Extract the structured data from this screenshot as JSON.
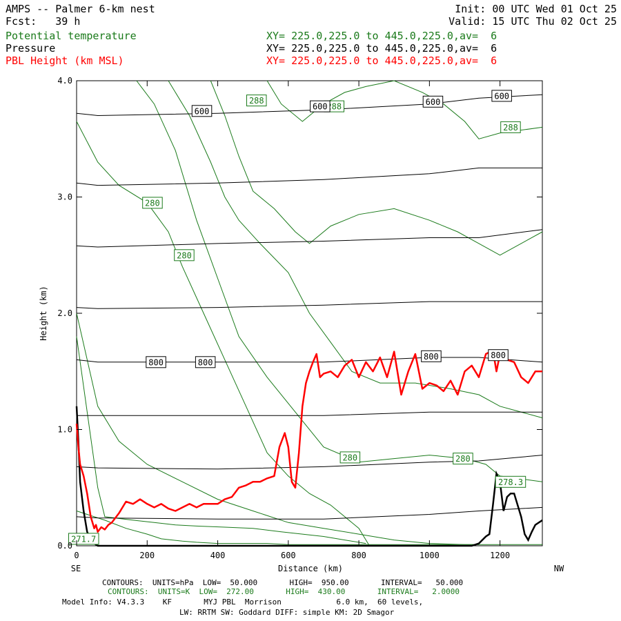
{
  "header": {
    "title": "AMPS -- Palmer 6-km nest",
    "forecast": "Fcst:   39 h",
    "init": "Init: 00 UTC Wed 01 Oct 25",
    "valid": "Valid: 15 UTC Thu 02 Oct 25",
    "fields": [
      {
        "name": "Potential temperature",
        "xy": "XY= 225.0,225.0 to 445.0,225.0,av=  6",
        "color": "#1a7a1a"
      },
      {
        "name": "Pressure",
        "xy": "XY= 225.0,225.0 to 445.0,225.0,av=  6",
        "color": "#000000"
      },
      {
        "name": "PBL Height (km MSL)",
        "xy": "XY= 225.0,225.0 to 445.0,225.0,av=  6",
        "color": "#ff0000"
      }
    ]
  },
  "footer": {
    "contours_p": "CONTOURS:  UNITS=hPa  LOW=  50.000       HIGH=  950.00       INTERVAL=   50.000",
    "contours_t": "CONTOURS:  UNITS=K  LOW=  272.00       HIGH=  430.00       INTERVAL=   2.0000",
    "model_info": "Model Info: V4.3.3    KF       MYJ PBL  Morrison            6.0 km,  60 levels,",
    "model_info2": "LW: RRTM SW: Goddard DIFF: simple KM: 2D Smagor"
  },
  "chart_data": {
    "type": "line",
    "xlabel": "Distance (km)",
    "ylabel": "Height (km)",
    "xlim": [
      0,
      1320
    ],
    "ylim": [
      0,
      4.0
    ],
    "x_ticks": [
      0,
      200,
      400,
      600,
      800,
      1000,
      1200
    ],
    "x_tick_labels": [
      "0",
      "200",
      "400",
      "600",
      "800",
      "1000",
      "1200"
    ],
    "y_ticks": [
      0,
      1,
      2,
      3,
      4
    ],
    "y_tick_labels": [
      "0.0",
      "1.0",
      "2.0",
      "3.0",
      "4.0"
    ],
    "x_left_label": "SE",
    "x_right_label": "NW",
    "grid": false,
    "series": [
      {
        "name": "PBL Height (km MSL)",
        "color": "#ff0000",
        "x": [
          0,
          5,
          10,
          20,
          30,
          40,
          50,
          55,
          60,
          70,
          80,
          90,
          100,
          120,
          140,
          160,
          180,
          200,
          220,
          240,
          260,
          280,
          300,
          320,
          340,
          360,
          380,
          400,
          420,
          440,
          460,
          480,
          500,
          520,
          540,
          560,
          575,
          590,
          600,
          610,
          620,
          630,
          640,
          650,
          660,
          670,
          680,
          690,
          700,
          720,
          740,
          760,
          780,
          800,
          820,
          840,
          860,
          880,
          900,
          920,
          940,
          960,
          980,
          1000,
          1020,
          1040,
          1060,
          1080,
          1100,
          1120,
          1140,
          1160,
          1180,
          1190,
          1200,
          1210,
          1220,
          1240,
          1260,
          1280,
          1300,
          1320
        ],
        "y": [
          1.05,
          0.85,
          0.7,
          0.6,
          0.45,
          0.25,
          0.15,
          0.18,
          0.12,
          0.16,
          0.14,
          0.18,
          0.2,
          0.28,
          0.38,
          0.36,
          0.4,
          0.36,
          0.33,
          0.36,
          0.32,
          0.3,
          0.33,
          0.36,
          0.33,
          0.36,
          0.36,
          0.36,
          0.4,
          0.42,
          0.5,
          0.52,
          0.55,
          0.55,
          0.58,
          0.6,
          0.85,
          0.97,
          0.85,
          0.55,
          0.5,
          0.8,
          1.2,
          1.4,
          1.5,
          1.58,
          1.65,
          1.45,
          1.48,
          1.5,
          1.45,
          1.55,
          1.6,
          1.45,
          1.58,
          1.5,
          1.62,
          1.45,
          1.67,
          1.3,
          1.5,
          1.65,
          1.35,
          1.4,
          1.38,
          1.33,
          1.42,
          1.3,
          1.5,
          1.55,
          1.45,
          1.65,
          1.68,
          1.5,
          1.65,
          1.62,
          1.6,
          1.58,
          1.45,
          1.4,
          1.5,
          1.5
        ]
      },
      {
        "name": "Pressure",
        "color": "#000000",
        "lines": [
          {
            "x": [
              0,
              60,
              400,
              700,
              1000,
              1140,
              1320
            ],
            "y": [
              3.72,
              3.7,
              3.72,
              3.75,
              3.8,
              3.85,
              3.88
            ]
          },
          {
            "x": [
              0,
              60,
              400,
              700,
              1000,
              1140,
              1320
            ],
            "y": [
              3.12,
              3.1,
              3.12,
              3.15,
              3.2,
              3.25,
              3.25
            ]
          },
          {
            "x": [
              0,
              60,
              400,
              700,
              1000,
              1140,
              1320
            ],
            "y": [
              2.58,
              2.57,
              2.6,
              2.62,
              2.65,
              2.65,
              2.72
            ]
          },
          {
            "x": [
              0,
              60,
              400,
              700,
              1000,
              1140,
              1320
            ],
            "y": [
              2.05,
              2.04,
              2.05,
              2.07,
              2.1,
              2.1,
              2.1
            ]
          },
          {
            "x": [
              0,
              60,
              400,
              700,
              1000,
              1140,
              1320
            ],
            "y": [
              1.6,
              1.58,
              1.58,
              1.58,
              1.62,
              1.62,
              1.58
            ]
          },
          {
            "x": [
              0,
              60,
              400,
              700,
              1000,
              1140,
              1320
            ],
            "y": [
              1.12,
              1.12,
              1.12,
              1.12,
              1.15,
              1.15,
              1.15
            ]
          },
          {
            "x": [
              0,
              60,
              400,
              700,
              1000,
              1140,
              1320
            ],
            "y": [
              0.68,
              0.67,
              0.66,
              0.68,
              0.72,
              0.73,
              0.78
            ]
          },
          {
            "x": [
              0,
              60,
              400,
              700,
              1000,
              1140,
              1320
            ],
            "y": [
              0.25,
              0.24,
              0.23,
              0.23,
              0.27,
              0.3,
              0.33
            ]
          }
        ],
        "labels": [
          {
            "text": "600",
            "x": 355,
            "y": 3.74
          },
          {
            "text": "600",
            "x": 690,
            "y": 3.78
          },
          {
            "text": "600",
            "x": 1010,
            "y": 3.82
          },
          {
            "text": "600",
            "x": 1205,
            "y": 3.87
          },
          {
            "text": "800",
            "x": 225,
            "y": 1.58
          },
          {
            "text": "800",
            "x": 365,
            "y": 1.58
          },
          {
            "text": "800",
            "x": 1005,
            "y": 1.63
          },
          {
            "text": "800",
            "x": 1195,
            "y": 1.64
          }
        ]
      },
      {
        "name": "Potential temperature",
        "color": "#1a7a1a",
        "lines": [
          {
            "x": [
              0,
              60,
              120,
              200,
              300,
              400,
              500,
              600,
              700,
              800,
              900,
              1000,
              1100,
              1140,
              1320
            ],
            "y": [
              2.0,
              1.2,
              0.9,
              0.7,
              0.55,
              0.4,
              0.3,
              0.2,
              0.15,
              0.1,
              0.05,
              0.02,
              0.01,
              0.01,
              0.01
            ]
          },
          {
            "x": [
              0,
              60,
              120,
              200,
              260,
              300,
              360,
              420,
              480,
              540,
              600,
              660,
              720,
              800,
              830
            ],
            "y": [
              3.65,
              3.3,
              3.1,
              2.95,
              2.7,
              2.4,
              2.0,
              1.6,
              1.2,
              0.8,
              0.6,
              0.45,
              0.35,
              0.15,
              0.0
            ]
          },
          {
            "x": [
              0,
              60,
              80,
              160,
              220,
              280,
              340,
              420,
              500,
              580,
              640,
              700,
              760,
              820
            ],
            "y": [
              1.8,
              0.5,
              0.25,
              0.22,
              0.2,
              0.18,
              0.17,
              0.16,
              0.15,
              0.12,
              0.1,
              0.08,
              0.05,
              0.02
            ]
          },
          {
            "x": [
              0,
              80,
              140,
              200,
              240,
              300,
              340,
              400,
              460,
              540,
              600,
              700,
              800,
              900,
              1000,
              1100,
              1140
            ],
            "y": [
              0.3,
              0.22,
              0.15,
              0.1,
              0.06,
              0.04,
              0.03,
              0.02,
              0.02,
              0.02,
              0.01,
              0.01,
              0.01,
              0.01,
              0.01,
              0.01,
              0.01
            ]
          },
          {
            "x": [
              170,
              220,
              280,
              340,
              400,
              460,
              540,
              620,
              700,
              800,
              900,
              1000,
              1100,
              1160,
              1200,
              1320
            ],
            "y": [
              4.0,
              3.8,
              3.4,
              2.8,
              2.3,
              1.8,
              1.45,
              1.15,
              0.85,
              0.72,
              0.75,
              0.78,
              0.75,
              0.7,
              0.6,
              0.55
            ]
          },
          {
            "x": [
              260,
              320,
              380,
              420,
              460,
              520,
              600,
              660,
              720,
              780,
              860,
              960,
              1060,
              1140,
              1200,
              1320
            ],
            "y": [
              4.0,
              3.7,
              3.3,
              3.0,
              2.8,
              2.6,
              2.35,
              2.0,
              1.75,
              1.5,
              1.4,
              1.4,
              1.35,
              1.3,
              1.2,
              1.1
            ]
          },
          {
            "x": [
              380,
              420,
              460,
              500,
              560,
              620,
              660,
              720,
              800,
              900,
              1000,
              1080,
              1140,
              1200,
              1320
            ],
            "y": [
              4.0,
              3.7,
              3.35,
              3.05,
              2.9,
              2.7,
              2.6,
              2.75,
              2.85,
              2.9,
              2.8,
              2.7,
              2.6,
              2.5,
              2.7
            ]
          },
          {
            "x": [
              540,
              580,
              640,
              700,
              760,
              820,
              900,
              980,
              1040,
              1100,
              1140,
              1200,
              1320
            ],
            "y": [
              4.0,
              3.8,
              3.65,
              3.8,
              3.9,
              3.95,
              4.0,
              3.9,
              3.8,
              3.65,
              3.5,
              3.55,
              3.6
            ]
          }
        ],
        "labels": [
          {
            "text": "288",
            "x": 510,
            "y": 3.83
          },
          {
            "text": "288",
            "x": 730,
            "y": 3.78
          },
          {
            "text": "288",
            "x": 1230,
            "y": 3.6
          },
          {
            "text": "280",
            "x": 215,
            "y": 2.95
          },
          {
            "text": "280",
            "x": 305,
            "y": 2.5
          },
          {
            "text": "280",
            "x": 775,
            "y": 0.76
          },
          {
            "text": "280",
            "x": 1095,
            "y": 0.75
          },
          {
            "text": "278.3",
            "x": 1230,
            "y": 0.55
          },
          {
            "text": "271.7",
            "x": 20,
            "y": 0.06
          }
        ]
      },
      {
        "name": "Terrain",
        "color": "#000000",
        "x": [
          0,
          5,
          10,
          20,
          30,
          40,
          50,
          60,
          80,
          100,
          200,
          400,
          600,
          800,
          1000,
          1120,
          1140,
          1160,
          1170,
          1180,
          1190,
          1200,
          1210,
          1220,
          1230,
          1240,
          1260,
          1270,
          1280,
          1290,
          1300,
          1320
        ],
        "y": [
          1.2,
          0.9,
          0.55,
          0.3,
          0.12,
          0.05,
          0.02,
          0.0,
          0.0,
          0.0,
          0.0,
          0.0,
          0.0,
          0.0,
          0.0,
          0.0,
          0.02,
          0.08,
          0.1,
          0.35,
          0.62,
          0.55,
          0.3,
          0.42,
          0.45,
          0.45,
          0.25,
          0.1,
          0.05,
          0.12,
          0.18,
          0.22
        ]
      }
    ]
  }
}
